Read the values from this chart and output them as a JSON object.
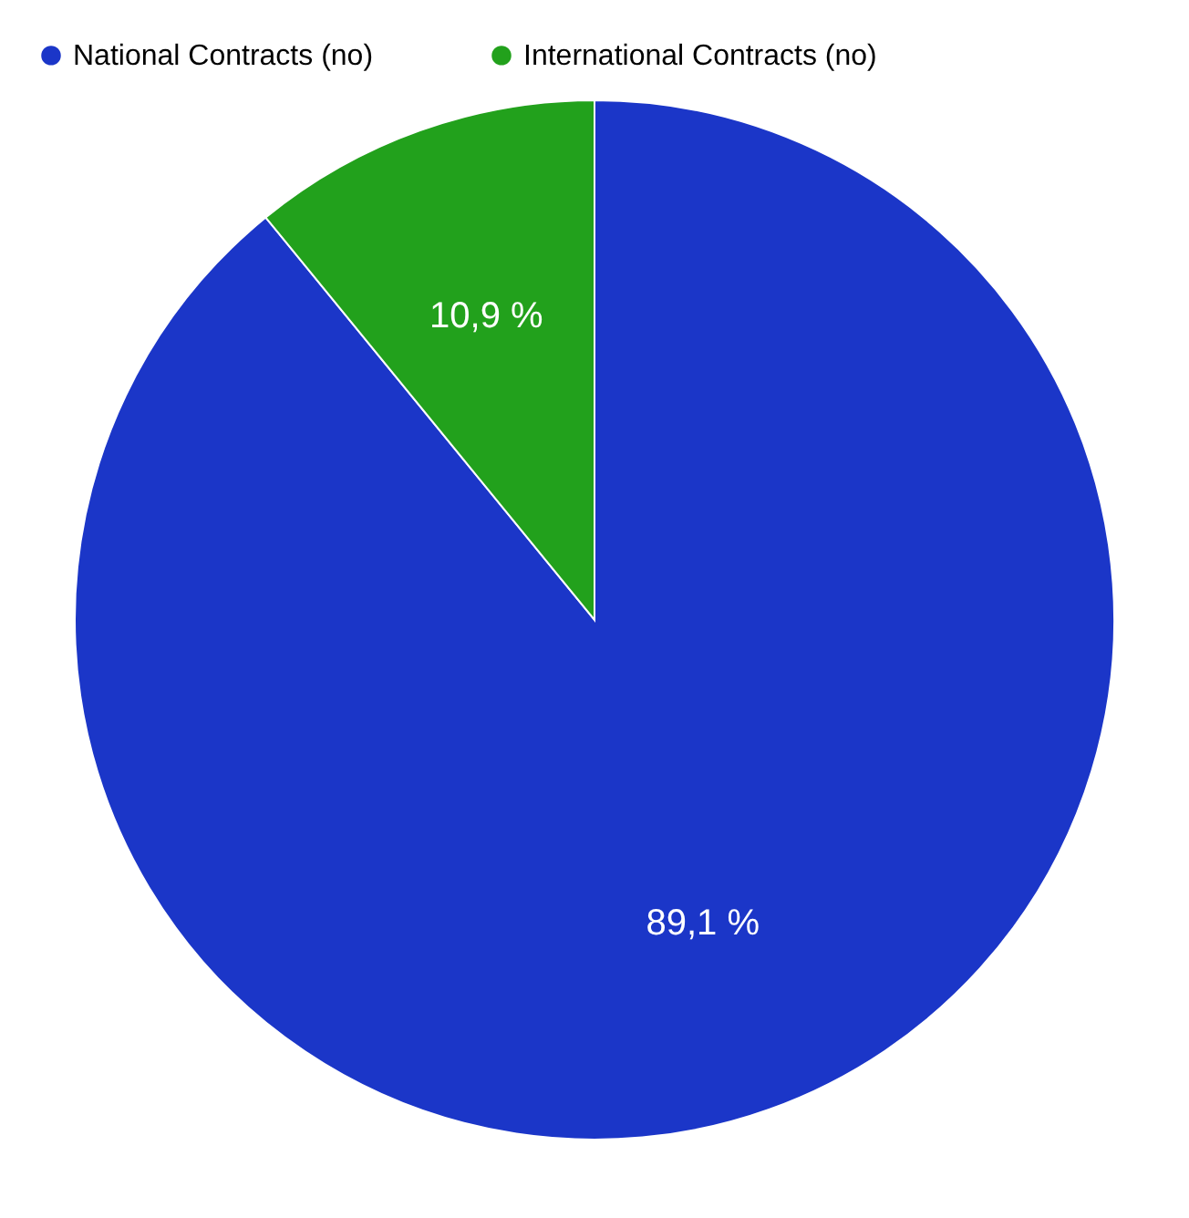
{
  "chart_data": {
    "type": "pie",
    "categories": [
      "National Contracts (no)",
      "International Contracts (no)"
    ],
    "values": [
      89.1,
      10.9
    ],
    "value_labels": [
      "89,1 %",
      "10,9 %"
    ],
    "colors": [
      "#1b36c8",
      "#22a11c"
    ],
    "legend": "top left"
  }
}
